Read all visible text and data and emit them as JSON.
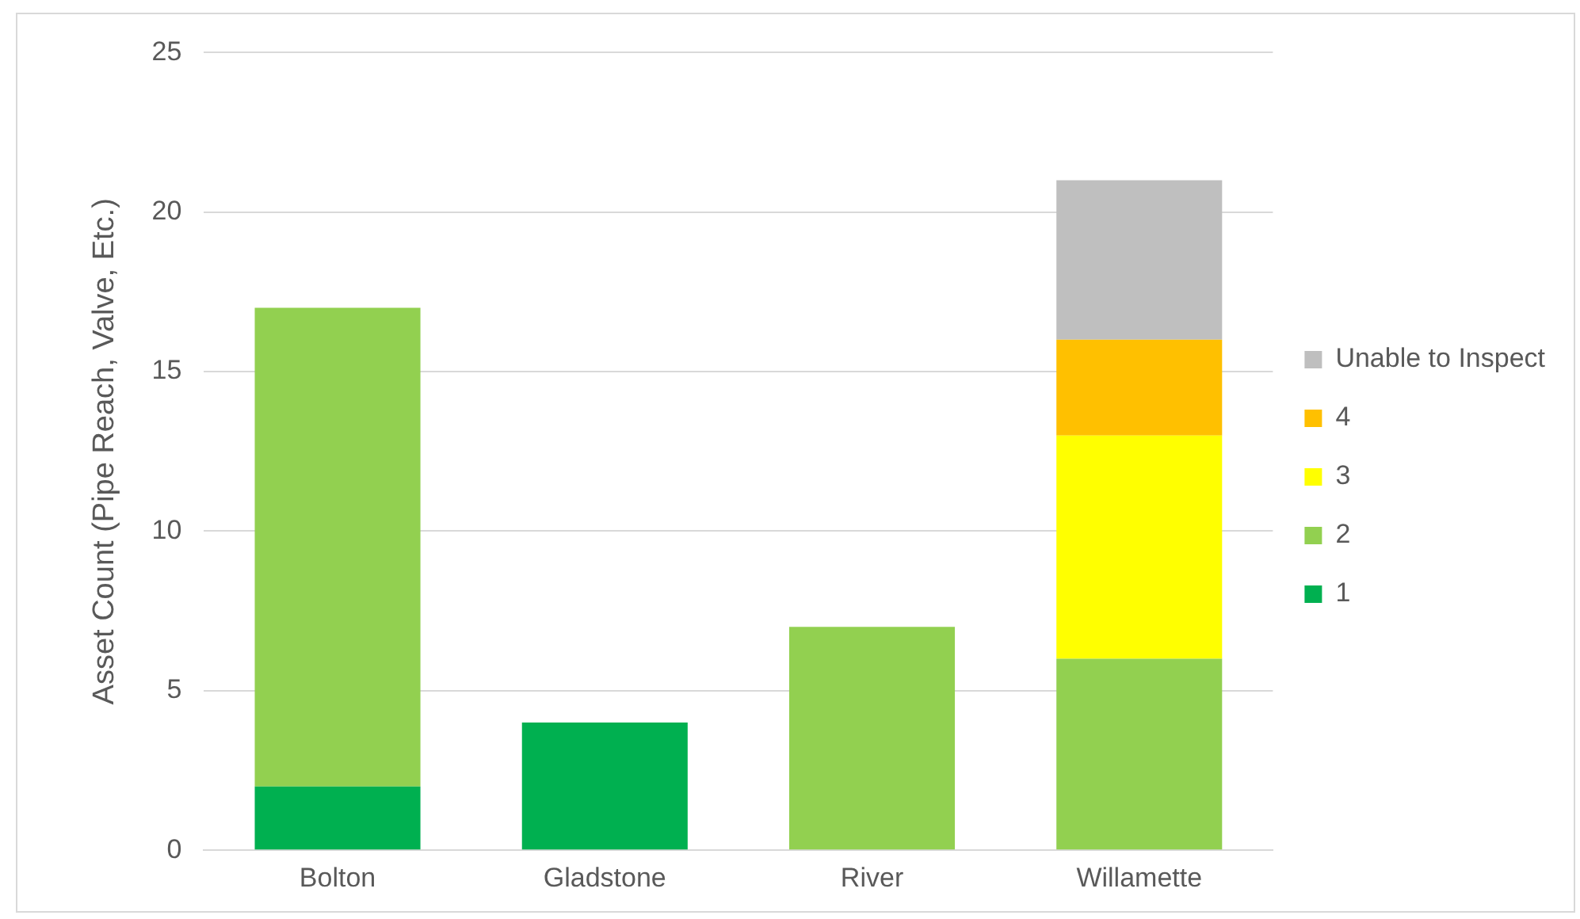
{
  "chart_data": {
    "type": "bar",
    "stacked": true,
    "ylabel": "Asset Count (Pipe Reach, Valve, Etc.)",
    "categories": [
      "Bolton",
      "Gladstone",
      "River",
      "Willamette"
    ],
    "series": [
      {
        "name": "1",
        "color": "#00b050",
        "values": [
          2,
          4,
          null,
          null
        ]
      },
      {
        "name": "2",
        "color": "#92d050",
        "values": [
          15,
          null,
          7,
          6
        ]
      },
      {
        "name": "3",
        "color": "#ffff00",
        "values": [
          null,
          null,
          null,
          7
        ]
      },
      {
        "name": "4",
        "color": "#ffc000",
        "values": [
          null,
          null,
          null,
          3
        ]
      },
      {
        "name": "Unable to Inspect",
        "color": "#bfbfbf",
        "values": [
          null,
          null,
          null,
          5
        ]
      }
    ],
    "ylim": [
      0,
      25
    ],
    "yticks": [
      0,
      5,
      10,
      15,
      20,
      25
    ],
    "grid": "y",
    "legend": "right"
  }
}
